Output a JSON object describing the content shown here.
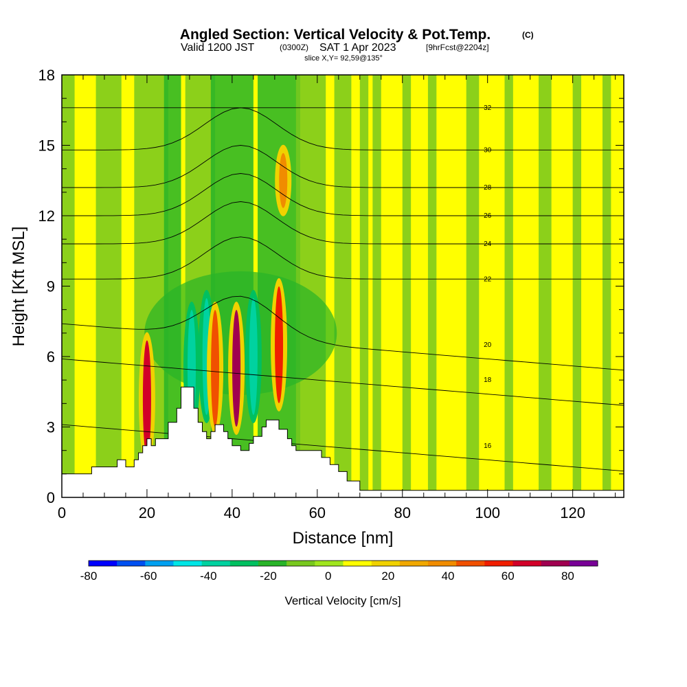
{
  "header": {
    "title_main": "Angled Section: Vertical Velocity & Pot.Temp.",
    "title_unit": "(C)",
    "valid_prefix": "Valid 1200 JST",
    "valid_z": "(0300Z)",
    "valid_date": "SAT 1 Apr 2023",
    "valid_fcst": "[9hrFcst@2204z]",
    "slice": "slice X,Y= 92,59@135°"
  },
  "chart_data": {
    "type": "heatmap",
    "xlabel": "Distance [nm]",
    "ylabel": "Height [Kft MSL]",
    "xlim": [
      0,
      132
    ],
    "ylim": [
      0,
      18
    ],
    "x_ticks": [
      "0",
      "20",
      "40",
      "60",
      "80",
      "100",
      "120"
    ],
    "y_ticks": [
      "0",
      "3",
      "6",
      "9",
      "12",
      "15",
      "18"
    ],
    "colorbar": {
      "label": "Vertical Velocity [cm/s]",
      "tick_labels": [
        "-80",
        "-60",
        "-40",
        "-20",
        "0",
        "20",
        "40",
        "60",
        "80"
      ],
      "levels": [
        -80,
        -70,
        -60,
        -50,
        -40,
        -30,
        -20,
        -10,
        0,
        10,
        20,
        30,
        40,
        50,
        60,
        70,
        80,
        90
      ],
      "colors": [
        "#0000ff",
        "#0050f0",
        "#00a0f0",
        "#00e6e6",
        "#00d2a0",
        "#00c060",
        "#28b428",
        "#78c81e",
        "#a0e61e",
        "#ffff00",
        "#f0d200",
        "#f0a800",
        "#f08c00",
        "#f05000",
        "#f01e00",
        "#d20028",
        "#a00050",
        "#780096"
      ]
    },
    "terrain_nm_kft": [
      [
        0,
        1.0
      ],
      [
        7,
        1.0
      ],
      [
        7,
        1.3
      ],
      [
        13,
        1.3
      ],
      [
        13,
        1.6
      ],
      [
        15,
        1.6
      ],
      [
        15,
        1.3
      ],
      [
        17,
        1.3
      ],
      [
        17,
        1.6
      ],
      [
        18,
        1.6
      ],
      [
        18,
        1.9
      ],
      [
        19,
        1.9
      ],
      [
        19,
        2.2
      ],
      [
        20,
        2.2
      ],
      [
        20,
        2.5
      ],
      [
        21,
        2.5
      ],
      [
        21,
        2.2
      ],
      [
        22,
        2.2
      ],
      [
        22,
        2.5
      ],
      [
        25,
        2.5
      ],
      [
        25,
        3.2
      ],
      [
        27,
        3.2
      ],
      [
        27,
        3.8
      ],
      [
        28,
        3.8
      ],
      [
        28,
        4.7
      ],
      [
        31,
        4.7
      ],
      [
        31,
        3.8
      ],
      [
        32,
        3.8
      ],
      [
        32,
        3.2
      ],
      [
        33,
        3.2
      ],
      [
        33,
        2.8
      ],
      [
        34,
        2.8
      ],
      [
        34,
        2.5
      ],
      [
        35,
        2.5
      ],
      [
        35,
        2.8
      ],
      [
        36,
        2.8
      ],
      [
        36,
        3.1
      ],
      [
        38,
        3.1
      ],
      [
        38,
        2.8
      ],
      [
        39,
        2.8
      ],
      [
        39,
        2.5
      ],
      [
        40,
        2.5
      ],
      [
        40,
        2.2
      ],
      [
        42,
        2.2
      ],
      [
        42,
        2.0
      ],
      [
        44,
        2.0
      ],
      [
        44,
        2.3
      ],
      [
        45,
        2.3
      ],
      [
        45,
        2.6
      ],
      [
        47,
        2.6
      ],
      [
        47,
        3.0
      ],
      [
        48,
        3.0
      ],
      [
        48,
        3.3
      ],
      [
        51,
        3.3
      ],
      [
        51,
        2.9
      ],
      [
        53,
        2.9
      ],
      [
        53,
        2.5
      ],
      [
        54,
        2.5
      ],
      [
        54,
        2.2
      ],
      [
        55,
        2.2
      ],
      [
        55,
        2.0
      ],
      [
        61,
        2.0
      ],
      [
        61,
        1.7
      ],
      [
        63,
        1.7
      ],
      [
        63,
        1.4
      ],
      [
        65,
        1.4
      ],
      [
        65,
        1.1
      ],
      [
        67,
        1.1
      ],
      [
        67,
        0.7
      ],
      [
        70,
        0.7
      ],
      [
        70,
        0.3
      ],
      [
        132,
        0.3
      ]
    ],
    "cells": [
      {
        "x": 20,
        "y": 4.2,
        "v": 70
      },
      {
        "x": 30.5,
        "y": 5.5,
        "v": -40
      },
      {
        "x": 34,
        "y": 6.0,
        "v": -40
      },
      {
        "x": 36,
        "y": 5.5,
        "v": 50
      },
      {
        "x": 41,
        "y": 5.5,
        "v": 85
      },
      {
        "x": 45,
        "y": 6.0,
        "v": -40
      },
      {
        "x": 51,
        "y": 6.5,
        "v": 65
      },
      {
        "x": 52,
        "y": 13.5,
        "v": 40
      }
    ],
    "contours": [
      {
        "label": "16",
        "level": 16
      },
      {
        "label": "18",
        "level": 18
      },
      {
        "label": "20",
        "level": 20
      },
      {
        "label": "22",
        "level": 22
      },
      {
        "label": "24",
        "level": 24
      },
      {
        "label": "26",
        "level": 26
      },
      {
        "label": "28",
        "level": 28
      },
      {
        "label": "30",
        "level": 30
      },
      {
        "label": "32",
        "level": 32
      }
    ]
  }
}
